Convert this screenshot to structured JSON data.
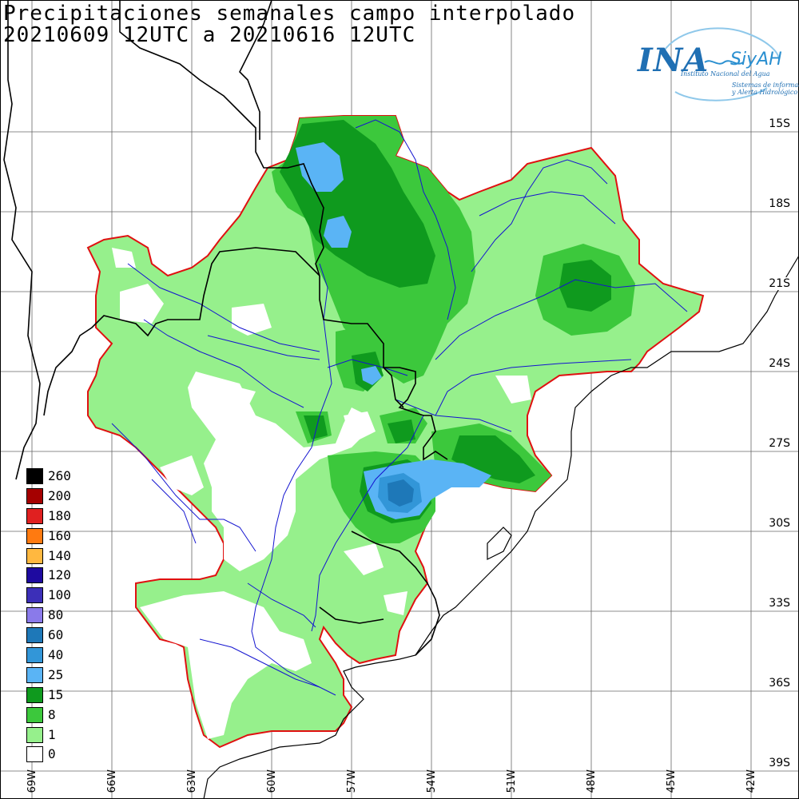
{
  "title": {
    "line1": "Precipitaciones semanales campo interpolado",
    "line2": "20210609 12UTC a 20210616 12UTC"
  },
  "logo": {
    "name": "INA",
    "system": "SiyAH",
    "subtitle1": "Instituto Nacional del Agua",
    "subtitle2": "Sistemas de información",
    "subtitle3": "y Alerta Hidrológico"
  },
  "legend": {
    "items": [
      {
        "label": "260",
        "color": "#000000"
      },
      {
        "label": "200",
        "color": "#a50000"
      },
      {
        "label": "180",
        "color": "#e02020"
      },
      {
        "label": "160",
        "color": "#ff7a10"
      },
      {
        "label": "140",
        "color": "#ffb840"
      },
      {
        "label": "120",
        "color": "#1e0aa0"
      },
      {
        "label": "100",
        "color": "#3c2fb8"
      },
      {
        "label": "80",
        "color": "#8a7aea"
      },
      {
        "label": "60",
        "color": "#1e78b8"
      },
      {
        "label": "40",
        "color": "#3296d8"
      },
      {
        "label": "25",
        "color": "#5ab4f5"
      },
      {
        "label": "15",
        "color": "#0f9a1e"
      },
      {
        "label": "8",
        "color": "#3cc83c"
      },
      {
        "label": "1",
        "color": "#96f08c"
      },
      {
        "label": "0",
        "color": "#ffffff"
      }
    ]
  },
  "latitude_labels": [
    "15S",
    "18S",
    "21S",
    "24S",
    "27S",
    "30S",
    "33S",
    "36S",
    "39S"
  ],
  "longitude_labels": [
    "69W",
    "66W",
    "63W",
    "60W",
    "57W",
    "54W",
    "51W",
    "48W",
    "45W",
    "42W"
  ],
  "colors": {
    "basin_border": "#e01010",
    "rivers": "#1414d0",
    "country_borders": "#000000",
    "grid": "#555555"
  }
}
